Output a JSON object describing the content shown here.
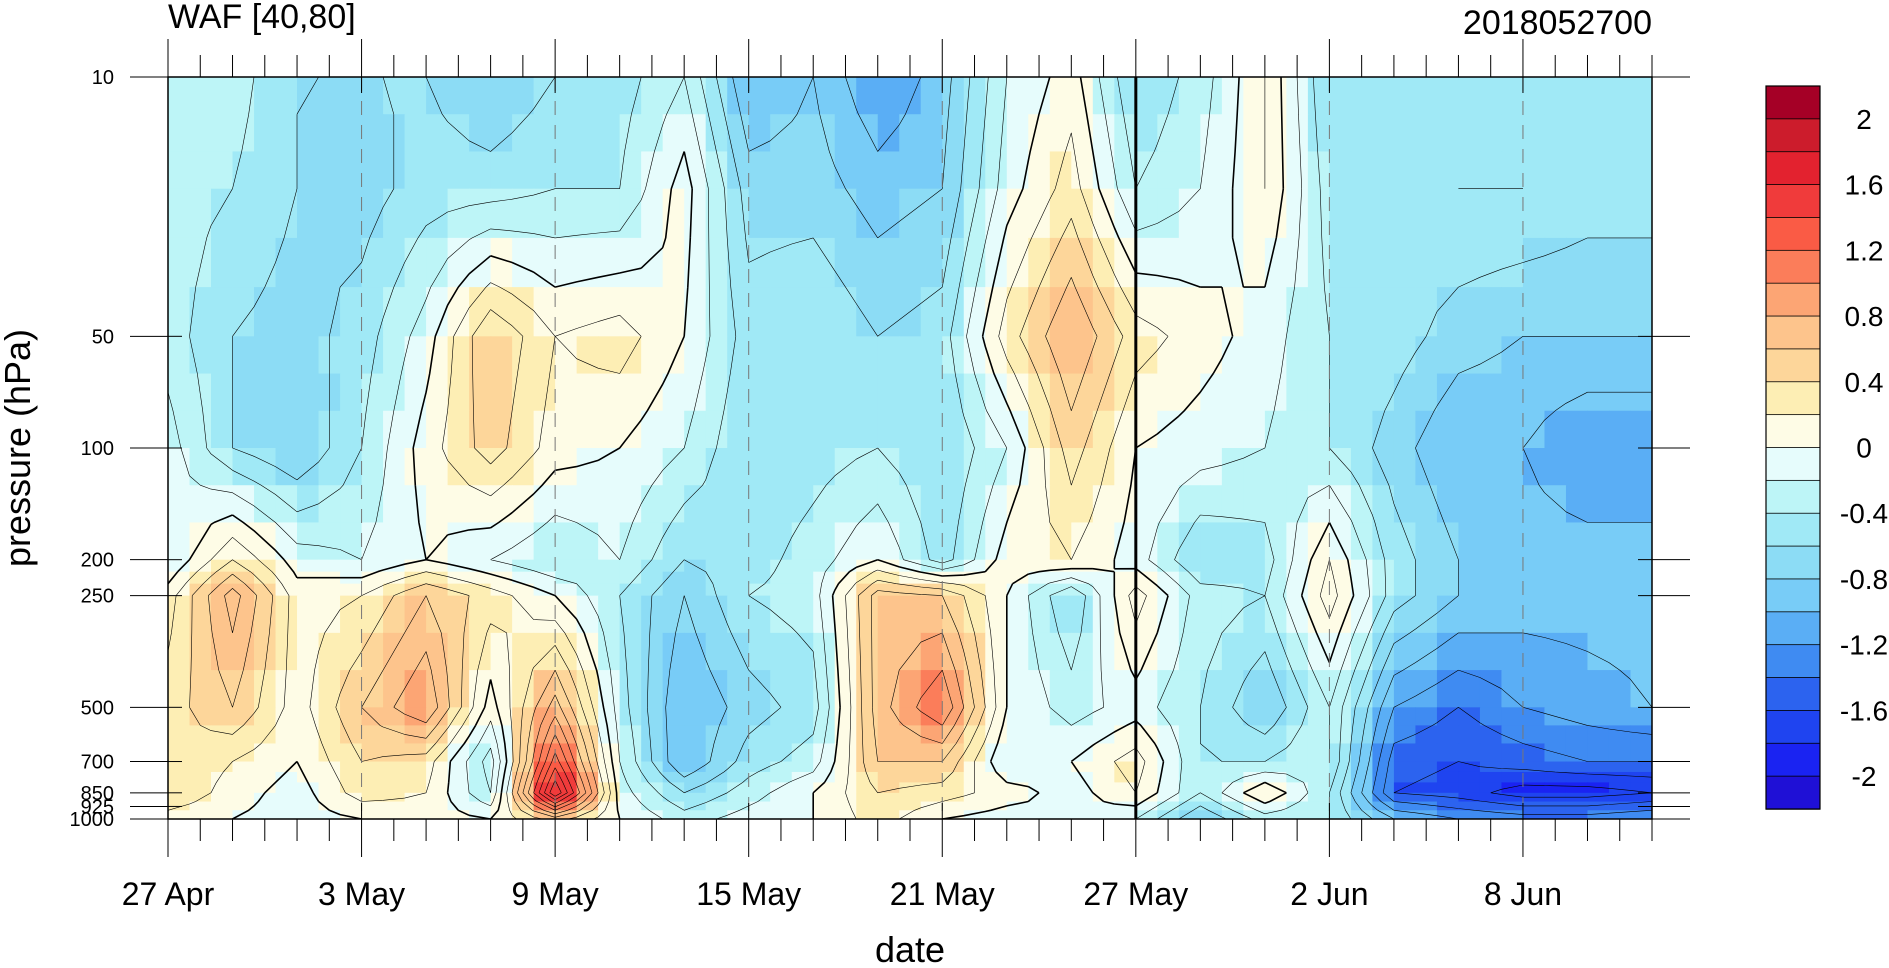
{
  "chart_data": {
    "type": "heatmap",
    "title": "WAF [40,80]",
    "right_title": "2018052700",
    "xlabel": "date",
    "ylabel": "pressure (hPa)",
    "x_tick_labels": [
      "27 Apr",
      "3 May",
      "9 May",
      "15 May",
      "21 May",
      "27 May",
      "2 Jun",
      "8 Jun"
    ],
    "x_tick_dates": [
      "2018-04-27",
      "2018-05-03",
      "2018-05-09",
      "2018-05-15",
      "2018-05-21",
      "2018-05-27",
      "2018-06-02",
      "2018-06-08"
    ],
    "x_range": [
      "2018-04-27",
      "2018-06-12"
    ],
    "y_tick_labels": [
      "10",
      "50",
      "100",
      "200",
      "250",
      "500",
      "700",
      "850",
      "925",
      "1000"
    ],
    "y_levels": [
      10,
      50,
      100,
      200,
      250,
      500,
      700,
      850,
      925,
      1000
    ],
    "y_scale": "log",
    "y_range": [
      1000,
      10
    ],
    "reference_date": "2018-05-27",
    "colorbar": {
      "labels": [
        "2",
        "1.6",
        "1.2",
        "0.8",
        "0.4",
        "0",
        "-0.4",
        "-0.8",
        "-1.2",
        "-1.6",
        "-2"
      ],
      "levels": [
        2.2,
        2.0,
        1.8,
        1.6,
        1.4,
        1.2,
        1.0,
        0.8,
        0.6,
        0.4,
        0.2,
        0.0,
        -0.2,
        -0.4,
        -0.6,
        -0.8,
        -1.0,
        -1.2,
        -1.4,
        -1.6,
        -1.8,
        -2.0,
        -2.2
      ],
      "colors": [
        "#a50026",
        "#cc1c2c",
        "#e3222f",
        "#f03b3b",
        "#fa5b45",
        "#fb7d5a",
        "#fca574",
        "#fdc48c",
        "#fdd69a",
        "#fdeeb4",
        "#fefce6",
        "#e6fcfc",
        "#bdf5f7",
        "#a0e9f6",
        "#8cdcf5",
        "#78ccf7",
        "#5aaef5",
        "#3f8bf2",
        "#2c63ef",
        "#1f44f0",
        "#1a23f2",
        "#1f10d6"
      ]
    },
    "value_grid": {
      "dates": [
        "2018-04-27",
        "2018-04-29",
        "2018-05-01",
        "2018-05-03",
        "2018-05-05",
        "2018-05-07",
        "2018-05-09",
        "2018-05-11",
        "2018-05-13",
        "2018-05-15",
        "2018-05-17",
        "2018-05-19",
        "2018-05-21",
        "2018-05-23",
        "2018-05-25",
        "2018-05-27",
        "2018-05-29",
        "2018-05-31",
        "2018-06-02",
        "2018-06-04",
        "2018-06-06",
        "2018-06-08",
        "2018-06-10",
        "2018-06-12"
      ],
      "levels": [
        10,
        20,
        50,
        100,
        200,
        250,
        500,
        700,
        850,
        1000
      ],
      "values": [
        [
          -0.4,
          -0.3,
          -0.6,
          -0.6,
          -0.6,
          -0.8,
          -0.6,
          -0.5,
          -0.2,
          -1.0,
          -0.8,
          -1.2,
          -0.9,
          -0.2,
          0.1,
          -0.6,
          -0.3,
          0.2,
          -0.6,
          -0.6,
          -0.5,
          -0.5,
          -0.6,
          -0.6
        ],
        [
          -0.3,
          -0.4,
          -0.6,
          -0.7,
          -0.5,
          -0.5,
          -0.4,
          -0.4,
          0.1,
          -0.7,
          -0.7,
          -0.9,
          -0.8,
          -0.1,
          0.3,
          -0.4,
          -0.2,
          0.2,
          -0.5,
          -0.5,
          -0.4,
          -0.4,
          -0.5,
          -0.5
        ],
        [
          -0.3,
          -0.6,
          -0.7,
          -0.5,
          -0.1,
          0.6,
          0.2,
          0.3,
          0.0,
          -0.5,
          -0.4,
          -0.6,
          -0.5,
          0.3,
          0.8,
          0.3,
          0.1,
          -0.1,
          -0.4,
          -0.5,
          -0.7,
          -0.8,
          -0.8,
          -0.8
        ],
        [
          -0.1,
          -0.6,
          -0.8,
          -0.4,
          0.1,
          0.5,
          0.1,
          0.0,
          -0.2,
          -0.6,
          -0.5,
          -0.4,
          -0.6,
          -0.2,
          0.5,
          0.0,
          -0.1,
          -0.2,
          -0.4,
          -0.7,
          -1.0,
          -1.0,
          -1.2,
          -1.2
        ],
        [
          -0.2,
          0.4,
          -0.1,
          -0.2,
          0.0,
          -0.2,
          -0.4,
          -0.2,
          -0.6,
          -0.5,
          -0.3,
          0.0,
          -0.5,
          0.1,
          0.2,
          -0.1,
          -0.6,
          -0.5,
          0.2,
          -0.5,
          -0.8,
          -0.9,
          -0.9,
          -0.9
        ],
        [
          0.1,
          0.9,
          0.1,
          0.2,
          0.6,
          0.3,
          0.0,
          -0.4,
          -0.8,
          -0.4,
          -0.3,
          0.7,
          0.6,
          0.0,
          -0.6,
          0.3,
          -0.3,
          -0.4,
          0.3,
          -0.5,
          -0.8,
          -0.9,
          -0.9,
          -0.9
        ],
        [
          0.3,
          0.6,
          0.1,
          0.6,
          1.0,
          -0.1,
          0.9,
          -0.3,
          -1.0,
          -0.7,
          -0.5,
          0.7,
          1.2,
          0.0,
          -0.3,
          -0.1,
          -0.4,
          -0.8,
          -0.2,
          -1.2,
          -1.4,
          -1.2,
          -1.1,
          -1.0
        ],
        [
          0.4,
          0.2,
          0.0,
          0.4,
          0.3,
          -0.5,
          1.5,
          -0.2,
          -1.0,
          -0.5,
          -0.3,
          0.6,
          0.6,
          -0.2,
          0.0,
          0.3,
          -0.4,
          -0.4,
          -0.2,
          -1.5,
          -1.6,
          -1.5,
          -1.4,
          -1.4
        ],
        [
          0.4,
          0.1,
          -0.1,
          0.3,
          0.2,
          -0.4,
          2.0,
          -0.1,
          -0.6,
          -0.3,
          0.0,
          0.4,
          0.3,
          0.1,
          -0.1,
          0.2,
          -0.4,
          0.2,
          -0.4,
          -1.6,
          -1.7,
          -1.9,
          -1.9,
          -1.8
        ],
        [
          0.1,
          0.0,
          -0.1,
          0.0,
          0.1,
          0.0,
          0.5,
          0.0,
          -0.3,
          -0.1,
          0.0,
          0.3,
          0.0,
          -0.1,
          0.0,
          -0.2,
          -0.8,
          -0.3,
          -0.4,
          -1.0,
          -1.2,
          -1.3,
          -1.3,
          -1.2
        ]
      ]
    }
  }
}
